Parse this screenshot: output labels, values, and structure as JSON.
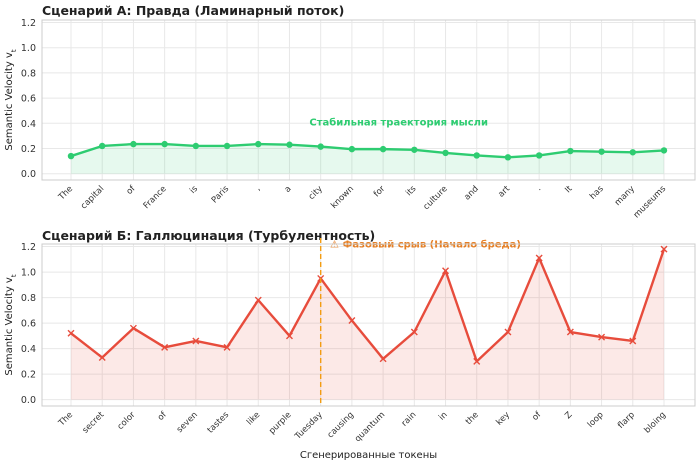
{
  "chart_data": [
    {
      "type": "line",
      "title": "Сценарий А: Правда (Ламинарный поток)",
      "ylabel": "Semantic Velocity v",
      "ylabel_sub": "t",
      "xlabel": "",
      "ylim": [
        -0.05,
        1.22
      ],
      "yticks": [
        0.0,
        0.2,
        0.4,
        0.6,
        0.8,
        1.0,
        1.2
      ],
      "grid": true,
      "line_color": "#2ecc71",
      "fill_color": "#2ecc71",
      "marker": "circle",
      "categories": [
        "The",
        "capital",
        "of",
        "France",
        "is",
        "Paris",
        ",",
        "a",
        "city",
        "known",
        "for",
        "its",
        "culture",
        "and",
        "art",
        ".",
        "It",
        "has",
        "many",
        "museums"
      ],
      "values": [
        0.14,
        0.22,
        0.235,
        0.235,
        0.22,
        0.22,
        0.235,
        0.23,
        0.215,
        0.195,
        0.195,
        0.19,
        0.165,
        0.145,
        0.13,
        0.145,
        0.18,
        0.175,
        0.17,
        0.185
      ],
      "annotation": {
        "text": "Стабильная траектория мысли",
        "color": "#2ecc71",
        "x_index": 10.5,
        "y": 0.41
      }
    },
    {
      "type": "line",
      "title": "Сценарий Б: Галлюцинация (Турбулентность)",
      "ylabel": "Semantic Velocity v",
      "ylabel_sub": "t",
      "xlabel": "Сгенерированные токены",
      "ylim": [
        -0.05,
        1.22
      ],
      "yticks": [
        0.0,
        0.2,
        0.4,
        0.6,
        0.8,
        1.0,
        1.2
      ],
      "grid": true,
      "line_color": "#e74c3c",
      "fill_color": "#e74c3c",
      "marker": "x",
      "categories": [
        "The",
        "secret",
        "color",
        "of",
        "seven",
        "tastes",
        "like",
        "purple",
        "Tuesday",
        "causing",
        "quantum",
        "rain",
        "in",
        "the",
        "key",
        "of",
        "Z",
        "loop",
        "flarp",
        "bloing"
      ],
      "values": [
        0.52,
        0.33,
        0.56,
        0.41,
        0.46,
        0.41,
        0.78,
        0.5,
        0.95,
        0.62,
        0.32,
        0.53,
        1.01,
        0.3,
        0.53,
        1.11,
        0.53,
        0.49,
        0.46,
        1.18
      ],
      "vline": {
        "x_index": 8,
        "color": "#f39c12"
      },
      "annotation": {
        "text": "⚠ Фазовый срыв (Начало бреда)",
        "color": "#e67e22",
        "x_index": 8.3,
        "y": 1.22
      }
    }
  ]
}
